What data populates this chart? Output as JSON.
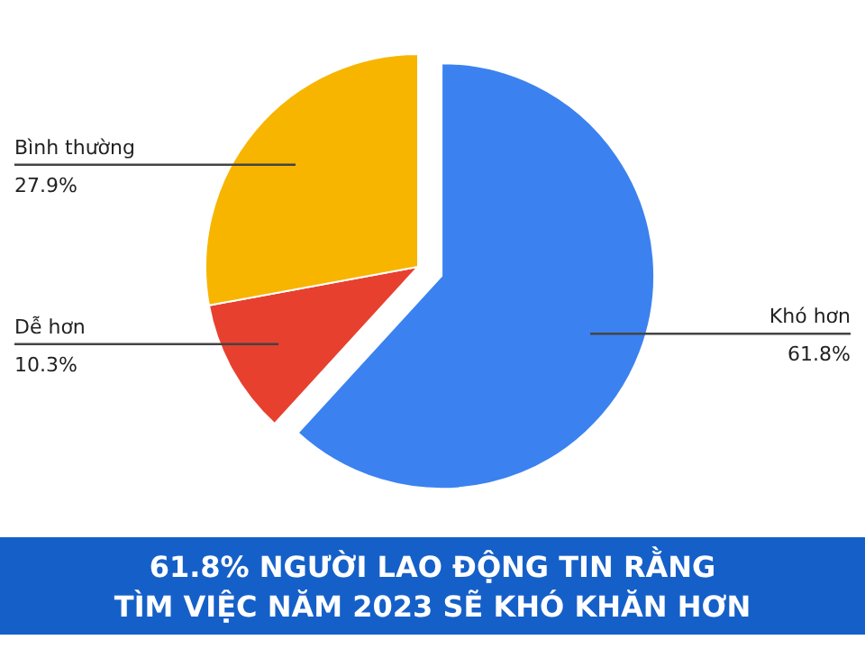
{
  "chart_data": {
    "type": "pie",
    "title": "61.8% NGƯỜI LAO ĐỘNG TIN RẰNG\nTÌM VIỆC NĂM 2023 SẼ KHÓ KHĂN HƠN",
    "categories": [
      "Khó hơn",
      "Dễ hơn",
      "Bình thường"
    ],
    "values": [
      61.8,
      10.3,
      27.9
    ],
    "colors": [
      "#3b82f0",
      "#e8402f",
      "#f7b500"
    ],
    "value_labels": [
      "61.8%",
      "10.3%",
      "27.9%"
    ]
  }
}
